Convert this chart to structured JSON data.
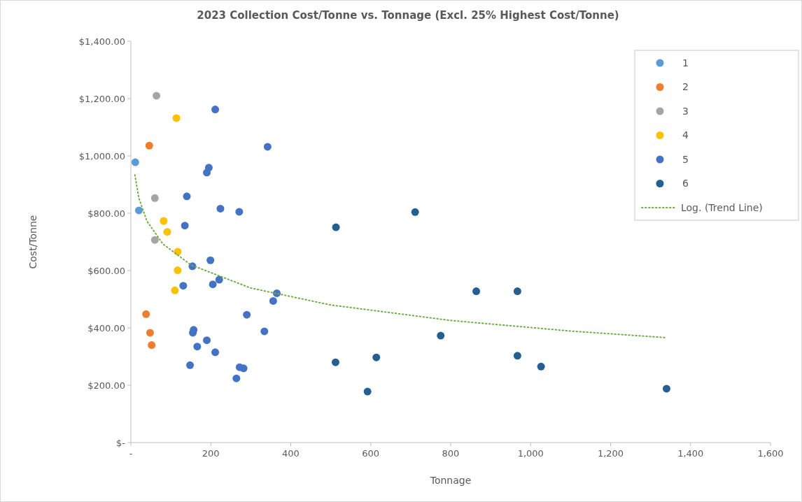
{
  "chart_data": {
    "type": "scatter",
    "title": "2023 Collection Cost/Tonne vs. Tonnage (Excl. 25% Highest Cost/Tonne)",
    "xlabel": "Tonnage",
    "ylabel": "Cost/Tonne",
    "xlim": [
      0,
      1600
    ],
    "xticks": [
      {
        "value": 0,
        "label": "-"
      },
      200,
      400,
      600,
      800,
      {
        "value": 1000,
        "label": "1,000"
      },
      {
        "value": 1200,
        "label": "1,200"
      },
      {
        "value": 1400,
        "label": "1,400"
      },
      {
        "value": 1600,
        "label": "1,600"
      }
    ],
    "ylim": [
      0,
      1400
    ],
    "yticks": [
      {
        "value": 0,
        "label": "$-"
      },
      {
        "value": 200,
        "label": "$200.00"
      },
      {
        "value": 400,
        "label": "$400.00"
      },
      {
        "value": 600,
        "label": "$600.00"
      },
      {
        "value": 800,
        "label": "$800.00"
      },
      {
        "value": 1000,
        "label": "$1,000.00"
      },
      {
        "value": 1200,
        "label": "$1,200.00"
      },
      {
        "value": 1400,
        "label": "$1,400.00"
      }
    ],
    "grid": false,
    "legend": "top right",
    "marker": "circle",
    "series": [
      {
        "name": "1",
        "color": "#5b9bd5",
        "x": [
          11,
          20
        ],
        "values": [
          978,
          810
        ]
      },
      {
        "name": "2",
        "color": "#ed7d31",
        "x": [
          46,
          38,
          48,
          52
        ],
        "values": [
          1036,
          448,
          383,
          340
        ]
      },
      {
        "name": "3",
        "color": "#a5a5a5",
        "x": [
          64,
          60,
          60
        ],
        "values": [
          1210,
          853,
          707
        ]
      },
      {
        "name": "4",
        "color": "#ffc000",
        "x": [
          114,
          82,
          91,
          117,
          117,
          110
        ],
        "values": [
          1132,
          773,
          735,
          666,
          601,
          531
        ]
      },
      {
        "name": "5",
        "color": "#4472c4",
        "x": [
          211,
          342,
          195,
          190,
          140,
          224,
          271,
          135,
          199,
          154,
          221,
          205,
          131,
          365,
          356,
          290,
          157,
          155,
          334,
          190,
          166,
          211,
          148,
          272,
          282,
          264
        ],
        "values": [
          1162,
          1032,
          959,
          942,
          859,
          816,
          805,
          757,
          636,
          615,
          568,
          552,
          547,
          521,
          494,
          446,
          393,
          383,
          388,
          357,
          335,
          315,
          270,
          263,
          259,
          224
        ]
      },
      {
        "name": "6",
        "color": "#255e91",
        "x": [
          513,
          711,
          864,
          775,
          512,
          614,
          592,
          967,
          967,
          1026,
          1340
        ],
        "values": [
          751,
          804,
          528,
          373,
          280,
          297,
          178,
          528,
          303,
          265,
          188
        ]
      },
      {
        "name": "Log. (Trend Line)",
        "type": "line",
        "color": "#70ad47",
        "line_style": "dotted",
        "marker": "none",
        "x": [
          10,
          20,
          40,
          80,
          150,
          300,
          500,
          800,
          1100,
          1340
        ],
        "values": [
          934,
          853,
          773,
          693,
          620,
          539,
          480,
          426,
          389,
          366
        ]
      }
    ]
  }
}
